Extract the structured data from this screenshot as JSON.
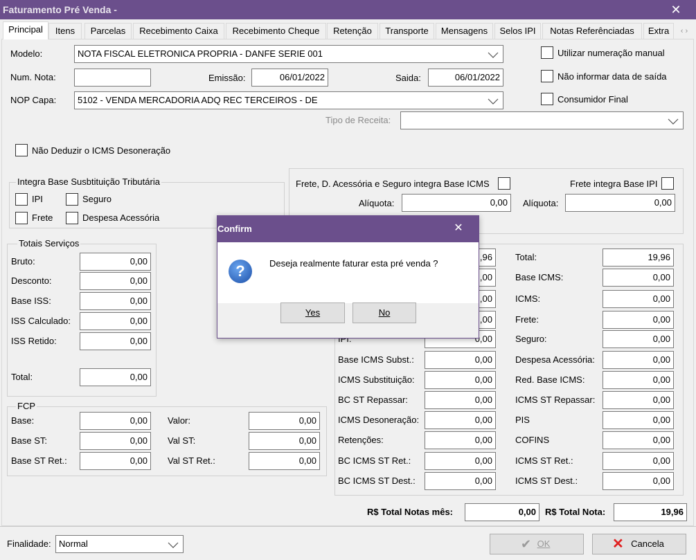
{
  "window": {
    "title": "Faturamento Pré Venda -",
    "close": "✕"
  },
  "tabs": [
    "Principal",
    "Itens",
    "Parcelas",
    "Recebimento Caixa",
    "Recebimento Cheque",
    "Retenção",
    "Transporte",
    "Mensagens",
    "Selos IPI",
    "Notas Referênciadas",
    "Extra"
  ],
  "header": {
    "modelo_label": "Modelo:",
    "modelo": "NOTA FISCAL ELETRONICA PROPRIA - DANFE SERIE 001",
    "num_nota_label": "Num. Nota:",
    "emissao_label": "Emissão:",
    "emissao": "06/01/2022",
    "saida_label": "Saida:",
    "saida": "06/01/2022",
    "nop_label": "NOP Capa:",
    "nop": "5102 - VENDA MERCADORIA ADQ REC TERCEIROS - DE",
    "tipo_receita_label": "Tipo de Receita:",
    "utilizar_numeracao": "Utilizar numeração manual",
    "nao_informar_data": "Não informar data de saída",
    "consumidor_final": "Consumidor Final",
    "nao_deduzir": "Não Deduzir o ICMS Desoneração"
  },
  "integra_st": {
    "title": "Integra Base Susbtituição Tributária",
    "options": [
      "IPI",
      "Seguro",
      "Frete",
      "Despesa Acessória"
    ]
  },
  "frete_group": {
    "frete_icms": "Frete, D. Acessória e Seguro integra Base ICMS",
    "frete_ipi": "Frete integra Base IPI",
    "aliquota_icms_label": "Alíquota:",
    "aliquota_icms": "0,00",
    "aliquota_ipi_label": "Alíquota:",
    "aliquota_ipi": "0,00"
  },
  "totais_servicos": {
    "title": "Totais Serviços",
    "rows": [
      [
        "Bruto:",
        "0,00"
      ],
      [
        "Desconto:",
        "0,00"
      ],
      [
        "Base ISS:",
        "0,00"
      ],
      [
        "ISS Calculado:",
        "0,00"
      ],
      [
        "ISS Retido:",
        "0,00"
      ],
      [
        "Total:",
        "0,00"
      ]
    ]
  },
  "fcp": {
    "title": "FCP",
    "rows": [
      [
        "Base:",
        "0,00",
        "Valor:",
        "0,00"
      ],
      [
        "Base ST:",
        "0,00",
        "Val ST:",
        "0,00"
      ],
      [
        "Base ST Ret.:",
        "0,00",
        "Val ST Ret.:",
        "0,00"
      ]
    ]
  },
  "totais_nota": {
    "left": [
      [
        null,
        ",96"
      ],
      [
        null,
        ",00"
      ],
      [
        null,
        ",00"
      ],
      [
        null,
        ",00"
      ],
      [
        "IPI:",
        "0,00"
      ],
      [
        "Base ICMS Subst.:",
        "0,00"
      ],
      [
        "ICMS Substituição:",
        "0,00"
      ],
      [
        "BC ST Repassar:",
        "0,00"
      ],
      [
        "ICMS Desoneração:",
        "0,00"
      ],
      [
        "Retenções:",
        "0,00"
      ],
      [
        "BC ICMS ST Ret.:",
        "0,00"
      ],
      [
        "BC ICMS ST Dest.:",
        "0,00"
      ]
    ],
    "right": [
      [
        "Total:",
        "19,96"
      ],
      [
        "Base ICMS:",
        "0,00"
      ],
      [
        "ICMS:",
        "0,00"
      ],
      [
        "Frete:",
        "0,00"
      ],
      [
        "Seguro:",
        "0,00"
      ],
      [
        "Despesa Acessória:",
        "0,00"
      ],
      [
        "Red. Base ICMS:",
        "0,00"
      ],
      [
        "ICMS ST Repassar:",
        "0,00"
      ],
      [
        "PIS",
        "0,00"
      ],
      [
        "COFINS",
        "0,00"
      ],
      [
        "ICMS ST Ret.:",
        "0,00"
      ],
      [
        "ICMS ST Dest.:",
        "0,00"
      ]
    ]
  },
  "footer": {
    "total_notas_mes_label": "R$ Total Notas mês:",
    "total_notas_mes": "0,00",
    "total_nota_label": "R$ Total Nota:",
    "total_nota": "19,96",
    "finalidade_label": "Finalidade:",
    "finalidade": "Normal",
    "ok": "OK",
    "cancela": "Cancela"
  },
  "dialog": {
    "title": "Confirm",
    "close": "✕",
    "message": "Deseja realmente faturar esta pré venda ?",
    "yes": "Yes",
    "no": "No"
  }
}
